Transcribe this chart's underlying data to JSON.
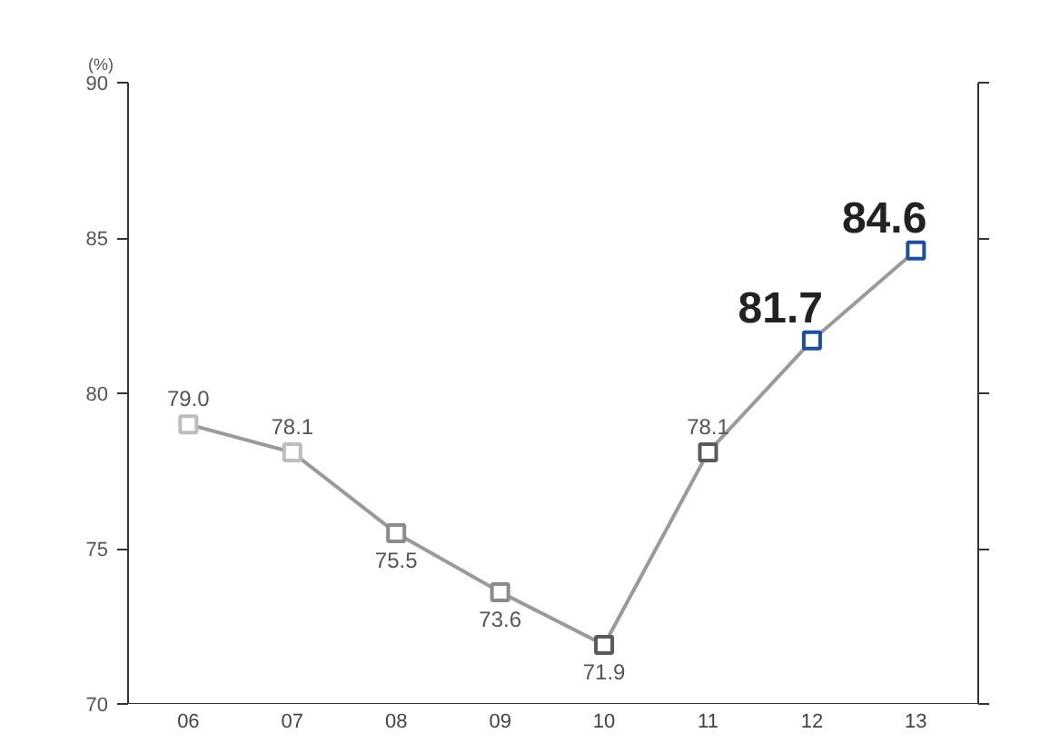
{
  "chart_data": {
    "type": "line",
    "ylabel": "(%)",
    "categories": [
      "06",
      "07",
      "08",
      "09",
      "10",
      "11",
      "12",
      "13"
    ],
    "values": [
      79.0,
      78.1,
      75.5,
      73.6,
      71.9,
      78.1,
      81.7,
      84.6
    ],
    "color": "#9a9a9a",
    "colors": [
      "#bdbdbd",
      "#bdbdbd",
      "#8c8c8c",
      "#8c8c8c",
      "#5a5a5a",
      "#5a5a5a",
      "#1f4e9c",
      "#1f4e9c"
    ],
    "value_labels": [
      "79.0",
      "78.1",
      "75.5",
      "73.6",
      "71.9",
      "78.1",
      "81.7",
      "84.6"
    ],
    "marker": "square",
    "ylim": [
      70,
      90
    ],
    "yticks": [
      70,
      75,
      80,
      85,
      90
    ],
    "grid": false
  }
}
